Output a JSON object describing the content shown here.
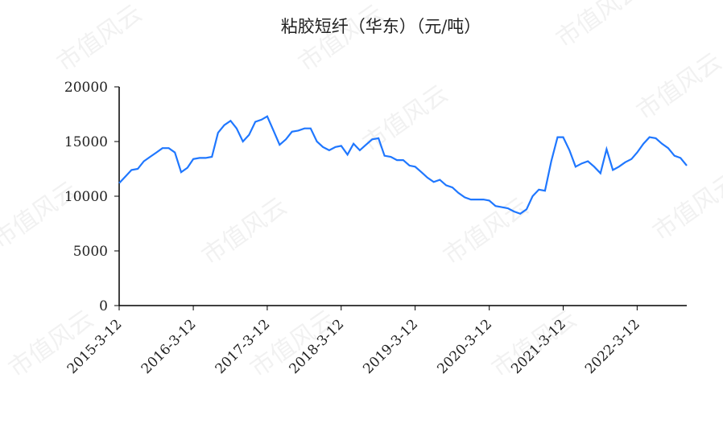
{
  "chart_data": {
    "type": "line",
    "title": "粘胶短纤（华东）（元/吨）",
    "watermark": "市值风云",
    "x": [
      "2015-3-12",
      "2015-4-12",
      "2015-5-12",
      "2015-6-12",
      "2015-7-12",
      "2015-8-12",
      "2015-9-12",
      "2015-10-12",
      "2015-11-12",
      "2015-12-12",
      "2016-1-12",
      "2016-2-12",
      "2016-3-12",
      "2016-4-12",
      "2016-5-12",
      "2016-6-12",
      "2016-7-12",
      "2016-8-12",
      "2016-9-12",
      "2016-10-12",
      "2016-11-12",
      "2016-12-12",
      "2017-1-12",
      "2017-2-12",
      "2017-3-12",
      "2017-4-12",
      "2017-5-12",
      "2017-6-12",
      "2017-7-12",
      "2017-8-12",
      "2017-9-12",
      "2017-10-12",
      "2017-11-12",
      "2017-12-12",
      "2018-1-12",
      "2018-2-12",
      "2018-3-12",
      "2018-4-12",
      "2018-5-12",
      "2018-6-12",
      "2018-7-12",
      "2018-8-12",
      "2018-9-12",
      "2018-10-12",
      "2018-11-12",
      "2018-12-12",
      "2019-1-12",
      "2019-2-12",
      "2019-3-12",
      "2019-4-12",
      "2019-5-12",
      "2019-6-12",
      "2019-7-12",
      "2019-8-12",
      "2019-9-12",
      "2019-10-12",
      "2019-11-12",
      "2019-12-12",
      "2020-1-12",
      "2020-2-12",
      "2020-3-12",
      "2020-4-12",
      "2020-5-12",
      "2020-6-12",
      "2020-7-12",
      "2020-8-12",
      "2020-9-12",
      "2020-10-12",
      "2020-11-12",
      "2020-12-12",
      "2021-1-12",
      "2021-2-12",
      "2021-3-12",
      "2021-4-12",
      "2021-5-12",
      "2021-6-12",
      "2021-7-12",
      "2021-8-12",
      "2021-9-12",
      "2021-10-12",
      "2021-11-12",
      "2021-12-12",
      "2022-1-12",
      "2022-2-12",
      "2022-3-12",
      "2022-4-12",
      "2022-5-12",
      "2022-6-12",
      "2022-7-12",
      "2022-8-12",
      "2022-9-12",
      "2022-10-12",
      "2022-11-12"
    ],
    "series": [
      {
        "name": "粘胶短纤（华东）",
        "color": "#1f77ff",
        "values": [
          11200,
          11800,
          12400,
          12500,
          13200,
          13600,
          14000,
          14400,
          14400,
          14000,
          12200,
          12600,
          13400,
          13500,
          13500,
          13600,
          15800,
          16500,
          16900,
          16200,
          15000,
          15600,
          16800,
          17000,
          17300,
          16000,
          14700,
          15200,
          15900,
          16000,
          16200,
          16200,
          15000,
          14500,
          14200,
          14500,
          14600,
          13800,
          14800,
          14200,
          14700,
          15200,
          15300,
          13700,
          13600,
          13300,
          13300,
          12800,
          12700,
          12200,
          11700,
          11300,
          11500,
          11000,
          10800,
          10300,
          9900,
          9700,
          9700,
          9700,
          9600,
          9100,
          9000,
          8900,
          8600,
          8400,
          8800,
          10000,
          10600,
          10500,
          13200,
          15400,
          15400,
          14200,
          12700,
          13000,
          13200,
          12700,
          12100,
          14300,
          12400,
          12700,
          13100,
          13400,
          14000,
          14800,
          15400,
          15300,
          14800,
          14400,
          13700,
          13500,
          12800
        ]
      }
    ],
    "xlim": [
      "2015-3-12",
      "2022-11-12"
    ],
    "xticks": [
      "2015-3-12",
      "2016-3-12",
      "2017-3-12",
      "2018-3-12",
      "2019-3-12",
      "2020-3-12",
      "2021-3-12",
      "2022-3-12"
    ],
    "ylim": [
      0,
      20000
    ],
    "yticks": [
      0,
      5000,
      10000,
      15000,
      20000
    ],
    "grid": false
  }
}
